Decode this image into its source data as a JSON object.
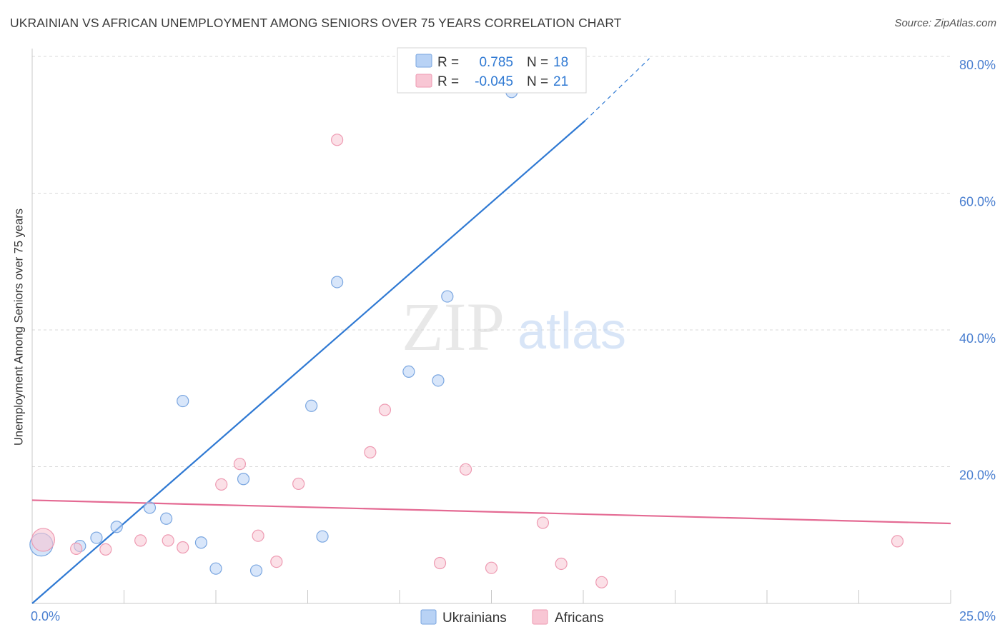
{
  "title": "UKRAINIAN VS AFRICAN UNEMPLOYMENT AMONG SENIORS OVER 75 YEARS CORRELATION CHART",
  "source": "Source: ZipAtlas.com",
  "watermark": {
    "zip": "ZIP",
    "atlas": "atlas"
  },
  "colors": {
    "blue_fill": "#b8d2f5",
    "blue_stroke": "#7aa6e0",
    "blue_line": "#2f79d3",
    "pink_fill": "#f8c6d4",
    "pink_stroke": "#ee9ab2",
    "pink_line": "#e46a93",
    "tick_text": "#4a7fd0",
    "grid": "#d8d8d8"
  },
  "legend": {
    "rows": [
      {
        "r_label": "R =",
        "r_value": "0.785",
        "n_label": "N =",
        "n_value": "18"
      },
      {
        "r_label": "R =",
        "r_value": "-0.045",
        "n_label": "N =",
        "n_value": "21"
      }
    ]
  },
  "chart_data": {
    "type": "scatter",
    "title": "UKRAINIAN VS AFRICAN UNEMPLOYMENT AMONG SENIORS OVER 75 YEARS CORRELATION CHART",
    "xlabel": "",
    "ylabel": "Unemployment Among Seniors over 75 years",
    "xlim": [
      0,
      25
    ],
    "ylim": [
      0,
      80
    ],
    "x_tick_labels": [
      "0.0%",
      "25.0%"
    ],
    "y_ticks": [
      20,
      40,
      60,
      80
    ],
    "y_tick_labels": [
      "20.0%",
      "40.0%",
      "60.0%",
      "80.0%"
    ],
    "grid": true,
    "legend_position": "top-center",
    "series": [
      {
        "name": "Ukrainians",
        "color": "blue",
        "r": 0.785,
        "n": 18,
        "points": [
          {
            "x": 0.25,
            "y": 8.6,
            "big": true
          },
          {
            "x": 1.3,
            "y": 8.4
          },
          {
            "x": 1.75,
            "y": 9.6
          },
          {
            "x": 2.3,
            "y": 11.2
          },
          {
            "x": 3.2,
            "y": 14.0
          },
          {
            "x": 3.65,
            "y": 12.4
          },
          {
            "x": 4.1,
            "y": 29.6
          },
          {
            "x": 4.6,
            "y": 8.9
          },
          {
            "x": 5.0,
            "y": 5.1
          },
          {
            "x": 5.75,
            "y": 18.2
          },
          {
            "x": 6.1,
            "y": 4.8
          },
          {
            "x": 7.6,
            "y": 28.9
          },
          {
            "x": 7.9,
            "y": 9.8
          },
          {
            "x": 8.3,
            "y": 47.0
          },
          {
            "x": 10.25,
            "y": 33.9
          },
          {
            "x": 11.05,
            "y": 32.6
          },
          {
            "x": 11.3,
            "y": 44.9
          },
          {
            "x": 13.05,
            "y": 74.8
          }
        ],
        "trend": {
          "x1": 0,
          "y1": 0,
          "x2": 15.05,
          "y2": 70.6,
          "dash_to_x": 16.8,
          "dash_to_y": 79.7
        }
      },
      {
        "name": "Africans",
        "color": "pink",
        "r": -0.045,
        "n": 21,
        "points": [
          {
            "x": 0.3,
            "y": 9.3,
            "big": true
          },
          {
            "x": 1.2,
            "y": 8.0
          },
          {
            "x": 2.0,
            "y": 7.9
          },
          {
            "x": 2.95,
            "y": 9.2
          },
          {
            "x": 3.7,
            "y": 9.2
          },
          {
            "x": 4.1,
            "y": 8.2
          },
          {
            "x": 5.15,
            "y": 17.4
          },
          {
            "x": 5.65,
            "y": 20.4
          },
          {
            "x": 6.15,
            "y": 9.9
          },
          {
            "x": 6.65,
            "y": 6.1
          },
          {
            "x": 7.25,
            "y": 17.5
          },
          {
            "x": 8.3,
            "y": 67.8
          },
          {
            "x": 9.2,
            "y": 22.1
          },
          {
            "x": 9.6,
            "y": 28.3
          },
          {
            "x": 11.1,
            "y": 5.9
          },
          {
            "x": 11.8,
            "y": 19.6
          },
          {
            "x": 12.5,
            "y": 5.2
          },
          {
            "x": 13.9,
            "y": 11.8
          },
          {
            "x": 14.4,
            "y": 5.8
          },
          {
            "x": 15.5,
            "y": 3.1
          },
          {
            "x": 23.55,
            "y": 9.1
          }
        ],
        "trend": {
          "x1": 0,
          "y1": 15.1,
          "x2": 25,
          "y2": 11.7
        }
      }
    ]
  },
  "bottom_legend": [
    {
      "label": "Ukrainians",
      "color": "blue"
    },
    {
      "label": "Africans",
      "color": "pink"
    }
  ]
}
